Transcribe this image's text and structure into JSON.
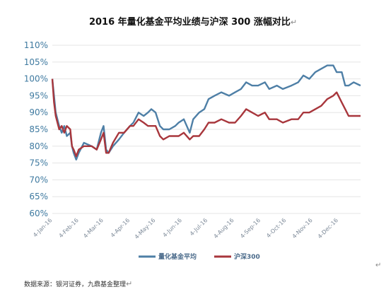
{
  "title": "2016 年量化基金平均业绩与沪深 300 涨幅对比",
  "title_mark": "↵",
  "source_note": "数据来源：银河证券，九鼎基金整理",
  "source_mark": "↵",
  "edge_mark": "↵",
  "colors": {
    "series1": "#4e7fa6",
    "series2": "#a8363c",
    "grid": "#e5e5e5",
    "ytick": "#3f7aa0"
  },
  "chart_data": {
    "type": "line",
    "title": "2016 年量化基金平均业绩与沪深 300 涨幅对比",
    "xlabel": "",
    "ylabel": "",
    "ylim": [
      0.6,
      1.1
    ],
    "ytick_labels": [
      "60%",
      "65%",
      "70%",
      "75%",
      "80%",
      "85%",
      "90%",
      "95%",
      "100%",
      "105%",
      "110%"
    ],
    "xtick_labels": [
      "4-Jan-16",
      "4-Feb-16",
      "4-Mar-16",
      "4-Apr-16",
      "4-May-16",
      "4-Jun-16",
      "4-Jul-16",
      "4-Aug-16",
      "4-Sep-16",
      "4-Oct-16",
      "4-Nov-16",
      "4-Dec-16"
    ],
    "xlim": [
      "2016-01-04",
      "2016-12-30"
    ],
    "grid": true,
    "legend_position": "bottom",
    "series": [
      {
        "name": "量化基金平均",
        "color": "#4e7fa6",
        "points": [
          [
            "2016-01-04",
            1.0
          ],
          [
            "2016-01-06",
            0.95
          ],
          [
            "2016-01-08",
            0.9
          ],
          [
            "2016-01-12",
            0.86
          ],
          [
            "2016-01-15",
            0.84
          ],
          [
            "2016-01-18",
            0.86
          ],
          [
            "2016-01-21",
            0.83
          ],
          [
            "2016-01-25",
            0.84
          ],
          [
            "2016-01-27",
            0.8
          ],
          [
            "2016-01-29",
            0.78
          ],
          [
            "2016-02-01",
            0.76
          ],
          [
            "2016-02-04",
            0.78
          ],
          [
            "2016-02-10",
            0.81
          ],
          [
            "2016-02-19",
            0.8
          ],
          [
            "2016-02-25",
            0.79
          ],
          [
            "2016-03-01",
            0.84
          ],
          [
            "2016-03-04",
            0.86
          ],
          [
            "2016-03-07",
            0.79
          ],
          [
            "2016-03-10",
            0.78
          ],
          [
            "2016-03-15",
            0.8
          ],
          [
            "2016-03-22",
            0.82
          ],
          [
            "2016-03-28",
            0.84
          ],
          [
            "2016-04-04",
            0.86
          ],
          [
            "2016-04-08",
            0.87
          ],
          [
            "2016-04-14",
            0.9
          ],
          [
            "2016-04-20",
            0.89
          ],
          [
            "2016-04-25",
            0.9
          ],
          [
            "2016-04-29",
            0.91
          ],
          [
            "2016-05-04",
            0.9
          ],
          [
            "2016-05-09",
            0.86
          ],
          [
            "2016-05-13",
            0.85
          ],
          [
            "2016-05-20",
            0.85
          ],
          [
            "2016-05-27",
            0.86
          ],
          [
            "2016-05-31",
            0.87
          ],
          [
            "2016-06-06",
            0.88
          ],
          [
            "2016-06-13",
            0.84
          ],
          [
            "2016-06-17",
            0.88
          ],
          [
            "2016-06-24",
            0.9
          ],
          [
            "2016-06-30",
            0.91
          ],
          [
            "2016-07-05",
            0.94
          ],
          [
            "2016-07-12",
            0.95
          ],
          [
            "2016-07-20",
            0.96
          ],
          [
            "2016-07-29",
            0.95
          ],
          [
            "2016-08-05",
            0.96
          ],
          [
            "2016-08-12",
            0.97
          ],
          [
            "2016-08-18",
            0.99
          ],
          [
            "2016-08-25",
            0.98
          ],
          [
            "2016-09-01",
            0.98
          ],
          [
            "2016-09-09",
            0.99
          ],
          [
            "2016-09-14",
            0.97
          ],
          [
            "2016-09-23",
            0.98
          ],
          [
            "2016-09-30",
            0.97
          ],
          [
            "2016-10-10",
            0.98
          ],
          [
            "2016-10-18",
            0.99
          ],
          [
            "2016-10-24",
            1.01
          ],
          [
            "2016-10-31",
            1.0
          ],
          [
            "2016-11-07",
            1.02
          ],
          [
            "2016-11-14",
            1.03
          ],
          [
            "2016-11-21",
            1.04
          ],
          [
            "2016-11-28",
            1.04
          ],
          [
            "2016-12-02",
            1.02
          ],
          [
            "2016-12-08",
            1.02
          ],
          [
            "2016-12-12",
            0.98
          ],
          [
            "2016-12-16",
            0.98
          ],
          [
            "2016-12-22",
            0.99
          ],
          [
            "2016-12-30",
            0.98
          ]
        ]
      },
      {
        "name": "沪深300",
        "color": "#a8363c",
        "points": [
          [
            "2016-01-04",
            1.0
          ],
          [
            "2016-01-06",
            0.93
          ],
          [
            "2016-01-08",
            0.89
          ],
          [
            "2016-01-12",
            0.85
          ],
          [
            "2016-01-15",
            0.86
          ],
          [
            "2016-01-18",
            0.84
          ],
          [
            "2016-01-21",
            0.86
          ],
          [
            "2016-01-25",
            0.85
          ],
          [
            "2016-01-27",
            0.8
          ],
          [
            "2016-01-29",
            0.79
          ],
          [
            "2016-02-01",
            0.77
          ],
          [
            "2016-02-04",
            0.79
          ],
          [
            "2016-02-10",
            0.8
          ],
          [
            "2016-02-19",
            0.8
          ],
          [
            "2016-02-25",
            0.79
          ],
          [
            "2016-03-01",
            0.82
          ],
          [
            "2016-03-04",
            0.84
          ],
          [
            "2016-03-07",
            0.78
          ],
          [
            "2016-03-10",
            0.78
          ],
          [
            "2016-03-15",
            0.81
          ],
          [
            "2016-03-22",
            0.84
          ],
          [
            "2016-03-28",
            0.84
          ],
          [
            "2016-04-04",
            0.86
          ],
          [
            "2016-04-08",
            0.86
          ],
          [
            "2016-04-14",
            0.88
          ],
          [
            "2016-04-20",
            0.87
          ],
          [
            "2016-04-25",
            0.86
          ],
          [
            "2016-04-29",
            0.86
          ],
          [
            "2016-05-04",
            0.86
          ],
          [
            "2016-05-09",
            0.83
          ],
          [
            "2016-05-13",
            0.82
          ],
          [
            "2016-05-20",
            0.83
          ],
          [
            "2016-05-27",
            0.83
          ],
          [
            "2016-05-31",
            0.83
          ],
          [
            "2016-06-06",
            0.84
          ],
          [
            "2016-06-13",
            0.82
          ],
          [
            "2016-06-17",
            0.83
          ],
          [
            "2016-06-24",
            0.83
          ],
          [
            "2016-06-30",
            0.85
          ],
          [
            "2016-07-05",
            0.87
          ],
          [
            "2016-07-12",
            0.87
          ],
          [
            "2016-07-20",
            0.88
          ],
          [
            "2016-07-29",
            0.87
          ],
          [
            "2016-08-05",
            0.87
          ],
          [
            "2016-08-12",
            0.89
          ],
          [
            "2016-08-18",
            0.91
          ],
          [
            "2016-08-25",
            0.9
          ],
          [
            "2016-09-01",
            0.89
          ],
          [
            "2016-09-09",
            0.9
          ],
          [
            "2016-09-14",
            0.88
          ],
          [
            "2016-09-23",
            0.88
          ],
          [
            "2016-09-30",
            0.87
          ],
          [
            "2016-10-10",
            0.88
          ],
          [
            "2016-10-18",
            0.88
          ],
          [
            "2016-10-24",
            0.9
          ],
          [
            "2016-10-31",
            0.9
          ],
          [
            "2016-11-07",
            0.91
          ],
          [
            "2016-11-14",
            0.92
          ],
          [
            "2016-11-21",
            0.94
          ],
          [
            "2016-11-28",
            0.95
          ],
          [
            "2016-12-02",
            0.96
          ],
          [
            "2016-12-08",
            0.93
          ],
          [
            "2016-12-12",
            0.91
          ],
          [
            "2016-12-16",
            0.89
          ],
          [
            "2016-12-22",
            0.89
          ],
          [
            "2016-12-30",
            0.89
          ]
        ]
      }
    ]
  }
}
